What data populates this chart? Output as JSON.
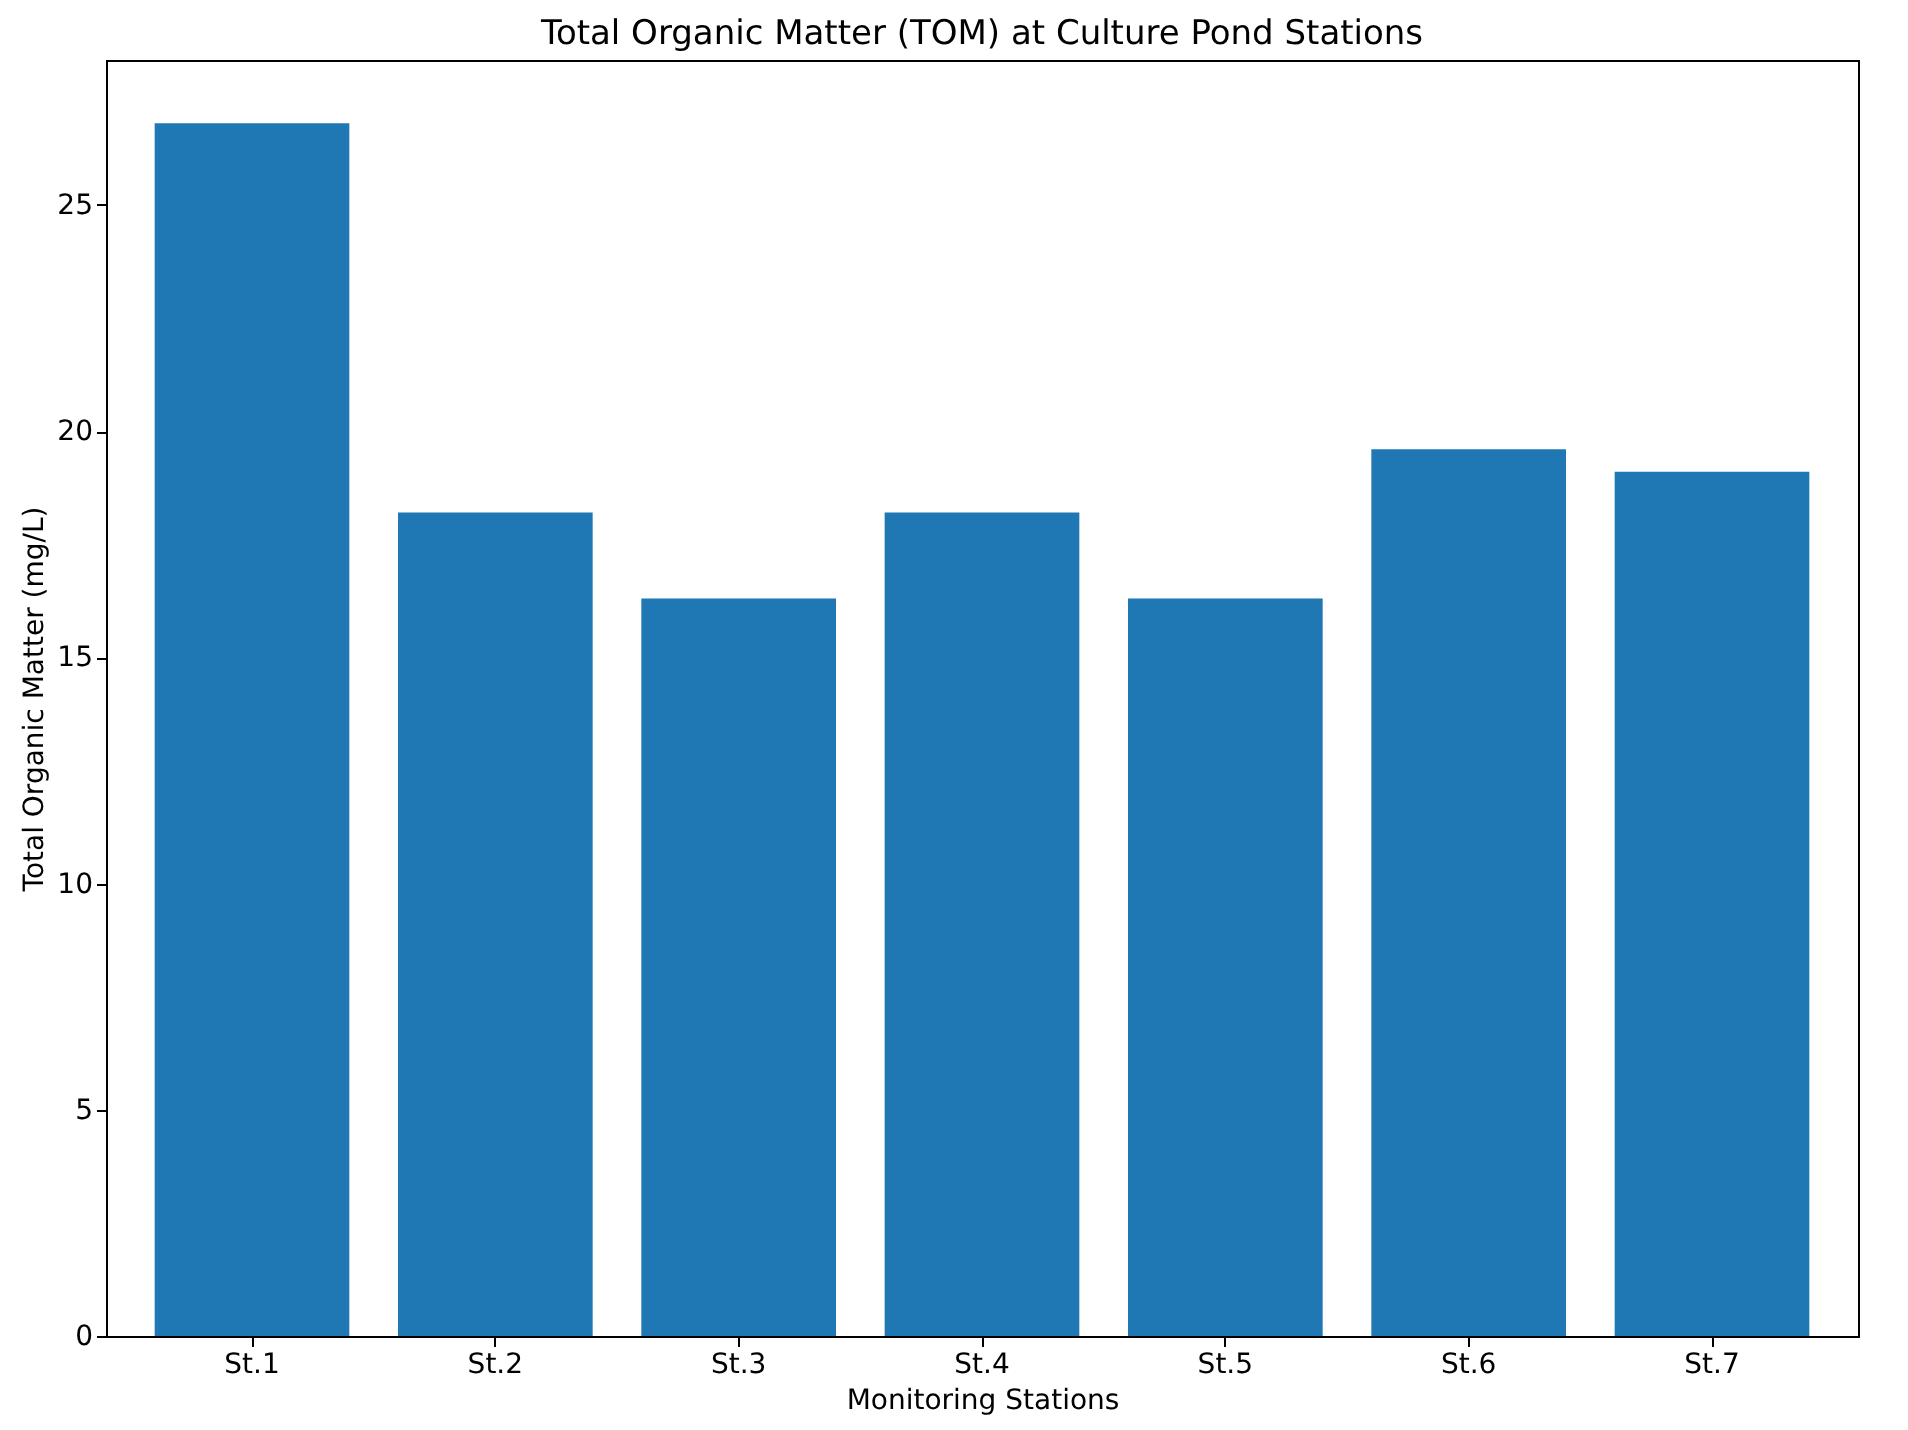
{
  "chart_data": {
    "type": "bar",
    "title": "Total Organic Matter (TOM) at Culture Pond Stations",
    "xlabel": "Monitoring Stations",
    "ylabel": "Total Organic Matter (mg/L)",
    "categories": [
      "St.1",
      "St.2",
      "St.3",
      "St.4",
      "St.5",
      "St.6",
      "St.7"
    ],
    "values": [
      26.8,
      18.2,
      16.3,
      18.2,
      16.3,
      19.6,
      19.1
    ],
    "color": "#1f77b4",
    "ylim": [
      0,
      28.2
    ],
    "yticks": [
      0,
      5,
      10,
      15,
      20,
      25
    ],
    "grid": false
  }
}
